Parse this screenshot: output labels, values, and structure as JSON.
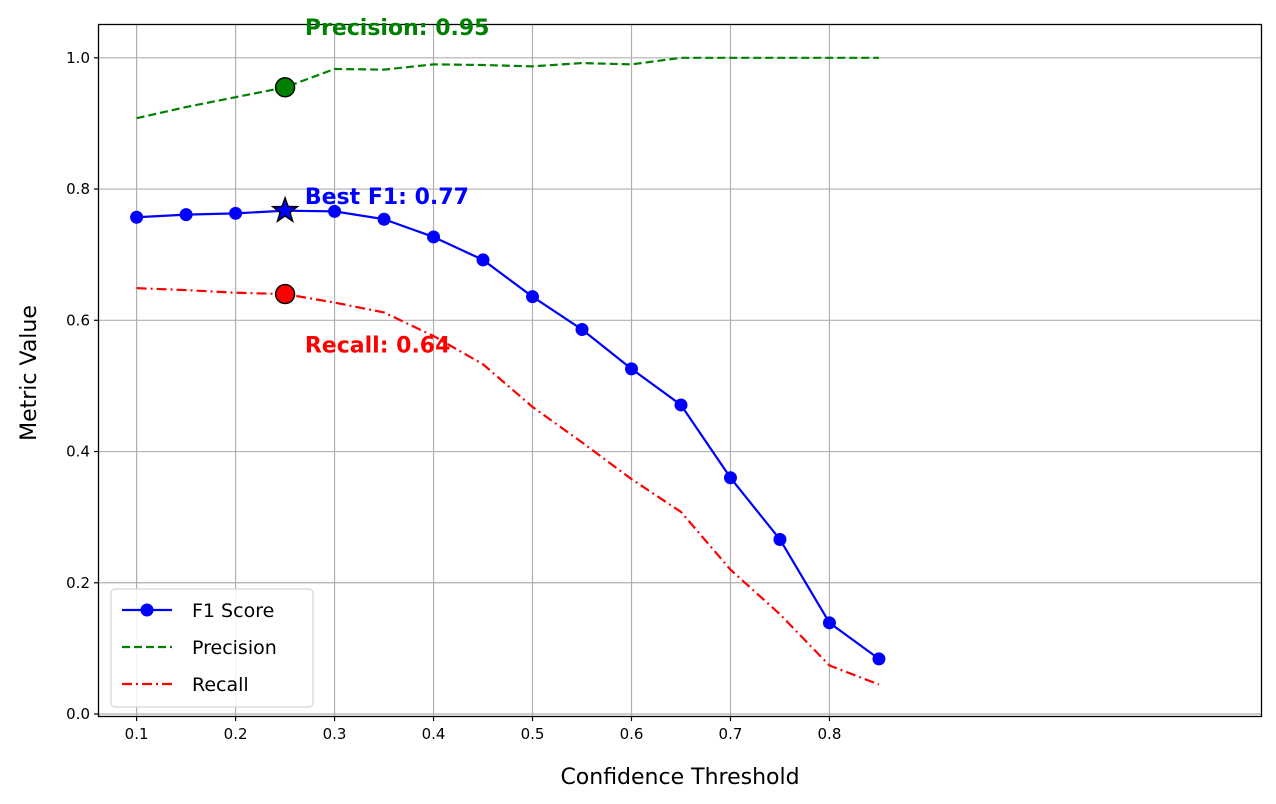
{
  "chart_data": {
    "type": "line",
    "xlabel": "Confidence Threshold",
    "ylabel": "Metric Value",
    "xlim": [
      0.062,
      1.236
    ],
    "ylim": [
      -0.003,
      1.05
    ],
    "x_ticks": [
      0.1,
      0.2,
      0.3,
      0.4,
      0.5,
      0.6,
      0.7,
      0.8
    ],
    "y_ticks": [
      0.0,
      0.2,
      0.4,
      0.6,
      0.8,
      1.0
    ],
    "grid": true,
    "legend_position": "lower left",
    "x": [
      0.1,
      0.15,
      0.2,
      0.25,
      0.3,
      0.35,
      0.4,
      0.45,
      0.5,
      0.55,
      0.6,
      0.65,
      0.7,
      0.75,
      0.8,
      0.85
    ],
    "series": [
      {
        "name": "F1 Score",
        "color": "#0000ff",
        "linestyle": "solid",
        "marker": "circle",
        "values": [
          0.757,
          0.761,
          0.763,
          0.767,
          0.766,
          0.754,
          0.727,
          0.692,
          0.636,
          0.586,
          0.526,
          0.471,
          0.36,
          0.266,
          0.139,
          0.084
        ]
      },
      {
        "name": "Precision",
        "color": "#008000",
        "linestyle": "dashed",
        "marker": "none",
        "values": [
          0.908,
          0.925,
          0.94,
          0.955,
          0.983,
          0.982,
          0.99,
          0.989,
          0.987,
          0.992,
          0.99,
          1.0,
          1.0,
          1.0,
          1.0,
          1.0
        ]
      },
      {
        "name": "Recall",
        "color": "#ff0000",
        "linestyle": "dashdot",
        "marker": "none",
        "values": [
          0.649,
          0.646,
          0.642,
          0.64,
          0.627,
          0.612,
          0.576,
          0.533,
          0.468,
          0.414,
          0.358,
          0.308,
          0.22,
          0.152,
          0.074,
          0.045
        ]
      }
    ],
    "highlights": [
      {
        "name": "best-f1-star",
        "shape": "star",
        "x": 0.25,
        "y": 0.767,
        "fill": "#0000ff"
      },
      {
        "name": "best-precision-point",
        "shape": "circle",
        "x": 0.25,
        "y": 0.955,
        "fill": "#008000"
      },
      {
        "name": "best-recall-point",
        "shape": "circle",
        "x": 0.25,
        "y": 0.64,
        "fill": "#ff0000"
      }
    ],
    "annotations": [
      {
        "name": "annotation-precision",
        "text": "Precision: 0.95",
        "x": 0.27,
        "y": 1.035,
        "color": "#008000"
      },
      {
        "name": "annotation-best-f1",
        "text": "Best F1: 0.77",
        "x": 0.27,
        "y": 0.777,
        "color": "#0000ff"
      },
      {
        "name": "annotation-recall",
        "text": "Recall: 0.64",
        "x": 0.27,
        "y": 0.551,
        "color": "#ff0000"
      }
    ]
  }
}
